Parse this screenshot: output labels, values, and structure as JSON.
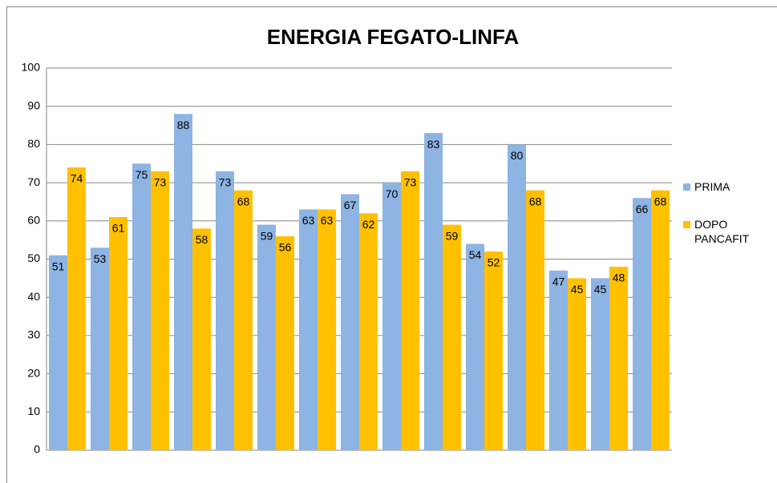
{
  "chart_data": {
    "type": "bar",
    "title": "ENERGIA FEGATO-LINFA",
    "categories": [
      null,
      null,
      null,
      null,
      null,
      null,
      null,
      null,
      null,
      null,
      null,
      null,
      null,
      null,
      null
    ],
    "series": [
      {
        "name": "PRIMA",
        "color": "#8db4e2",
        "values": [
          51,
          53,
          75,
          88,
          73,
          59,
          63,
          67,
          70,
          83,
          54,
          80,
          47,
          45,
          66
        ]
      },
      {
        "name": "DOPO PANCAFIT",
        "color": "#ffc000",
        "values": [
          74,
          61,
          73,
          58,
          68,
          56,
          63,
          62,
          73,
          59,
          52,
          68,
          45,
          48,
          68
        ]
      }
    ],
    "ylim": [
      0,
      100
    ],
    "yticks": [
      0,
      10,
      20,
      30,
      40,
      50,
      60,
      70,
      80,
      90,
      100
    ],
    "grid": true,
    "legend": "right"
  }
}
